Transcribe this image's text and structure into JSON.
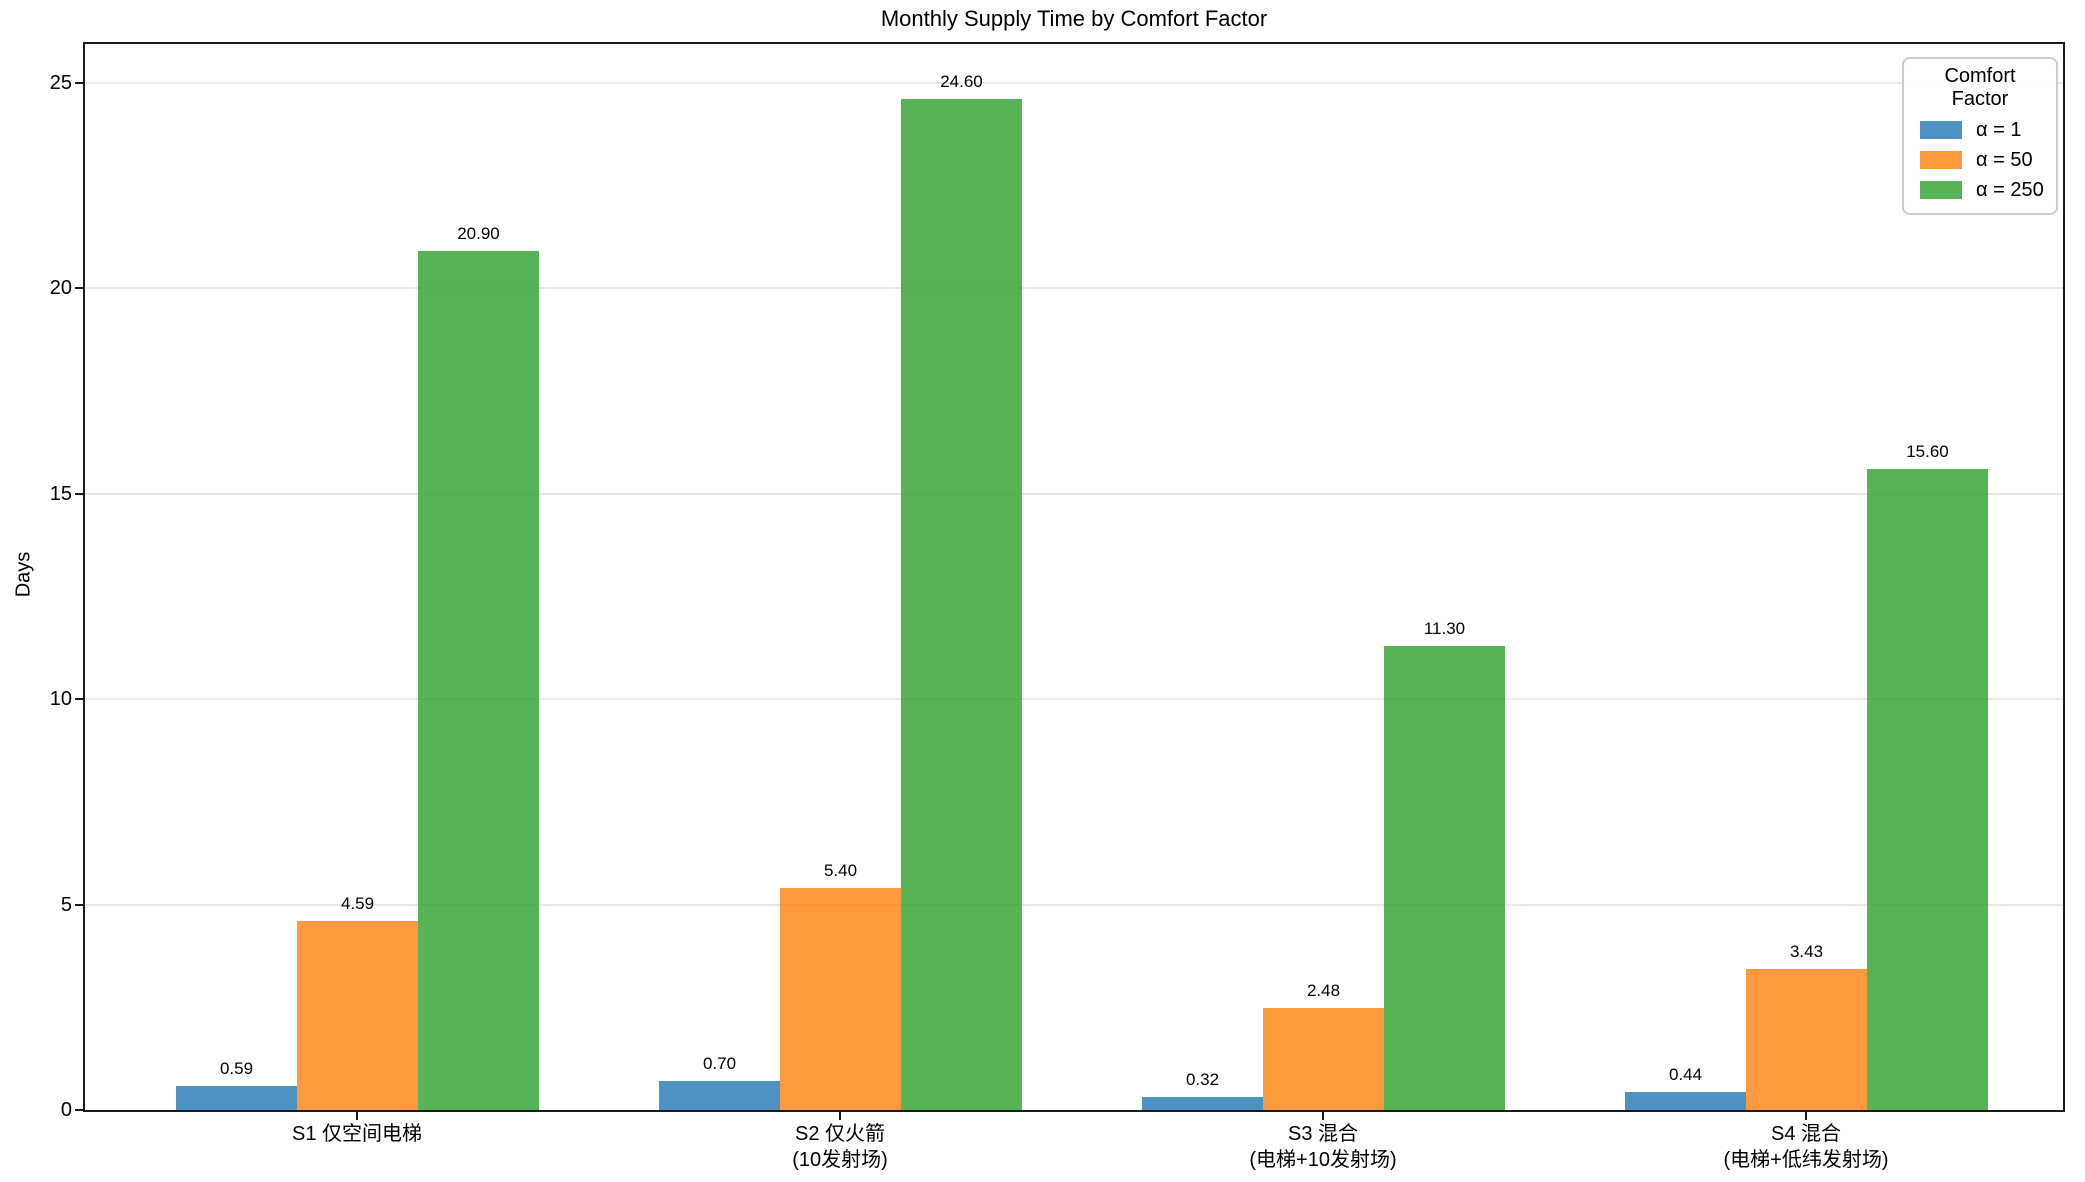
{
  "chart_data": {
    "type": "bar",
    "title": "Monthly Supply Time by Comfort Factor",
    "xlabel": "",
    "ylabel": "Days",
    "legend_title": "Comfort Factor",
    "legend_position": "upper right",
    "grid": true,
    "categories": [
      "S1 仅空间电梯",
      "S2 仅火箭\n(10发射场)",
      "S3 混合\n(电梯+10发射场)",
      "S4 混合\n(电梯+低纬发射场)"
    ],
    "series": [
      {
        "name": "α = 1",
        "color": "rgba(31,119,180,0.8)",
        "values": [
          0.59,
          0.7,
          0.32,
          0.44
        ]
      },
      {
        "name": "α = 50",
        "color": "rgba(255,127,14,0.8)",
        "values": [
          4.59,
          5.4,
          2.48,
          3.43
        ]
      },
      {
        "name": "α = 250",
        "color": "rgba(44,160,44,0.8)",
        "values": [
          20.9,
          24.6,
          11.3,
          15.6
        ]
      }
    ],
    "value_label_format": "2dp",
    "yticks": [
      0,
      5,
      10,
      15,
      20,
      25
    ],
    "ylim": [
      0,
      25.95
    ],
    "colors": {
      "spine": "#1a1a1a",
      "gridline": "#e8e8e8",
      "blue": "#1f77b4",
      "orange": "#ff7f0e",
      "green": "#2ca02c"
    }
  }
}
